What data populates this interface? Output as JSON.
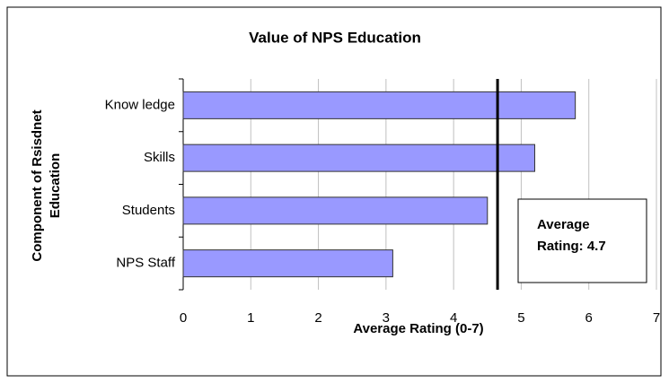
{
  "chart_data": {
    "type": "bar",
    "orientation": "horizontal",
    "title": "Value of NPS Education",
    "x_label": "Average Rating (0-7)",
    "y_label_lines": [
      "Component of Rsisdnet",
      "Education"
    ],
    "categories": [
      "Know ledge",
      "Skills",
      "Students",
      "NPS Staff"
    ],
    "values": [
      5.8,
      5.2,
      4.5,
      3.1
    ],
    "color": "#9999ff",
    "xlim": [
      0,
      7
    ],
    "xticks": [
      0,
      1,
      2,
      3,
      4,
      5,
      6,
      7
    ],
    "grid": true,
    "reference_line": 4.65,
    "annotation_lines": [
      "Average",
      "Rating: 4.7"
    ]
  }
}
